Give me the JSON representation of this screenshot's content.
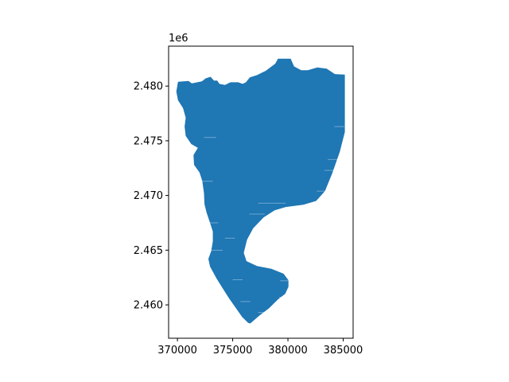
{
  "chart_data": {
    "type": "map",
    "title": "",
    "xlabel": "",
    "ylabel": "",
    "y_offset_label": "1e6",
    "xlim": [
      369200,
      385900
    ],
    "ylim": [
      2456950,
      2483650
    ],
    "x_ticks": [
      {
        "value": 370000,
        "label": "370000"
      },
      {
        "value": 375000,
        "label": "375000"
      },
      {
        "value": 380000,
        "label": "380000"
      },
      {
        "value": 385000,
        "label": "385000"
      }
    ],
    "y_ticks": [
      {
        "value": 2460000,
        "label": "2.460"
      },
      {
        "value": 2465000,
        "label": "2.465"
      },
      {
        "value": 2470000,
        "label": "2.470"
      },
      {
        "value": 2475000,
        "label": "2.475"
      },
      {
        "value": 2480000,
        "label": "2.480"
      }
    ],
    "fill_color": "#1f77b4",
    "grid": false,
    "region_outline": [
      [
        370050,
        2480400
      ],
      [
        371000,
        2480460
      ],
      [
        371300,
        2480250
      ],
      [
        372200,
        2480430
      ],
      [
        372550,
        2480700
      ],
      [
        373000,
        2480850
      ],
      [
        373300,
        2480500
      ],
      [
        373600,
        2480500
      ],
      [
        373800,
        2480200
      ],
      [
        374300,
        2480100
      ],
      [
        374800,
        2480350
      ],
      [
        375500,
        2480350
      ],
      [
        375900,
        2480200
      ],
      [
        376200,
        2480350
      ],
      [
        376550,
        2480800
      ],
      [
        377200,
        2481000
      ],
      [
        378000,
        2481400
      ],
      [
        378850,
        2482050
      ],
      [
        379100,
        2482500
      ],
      [
        380250,
        2482500
      ],
      [
        380550,
        2481800
      ],
      [
        381200,
        2481450
      ],
      [
        381800,
        2481450
      ],
      [
        382650,
        2481700
      ],
      [
        383500,
        2481600
      ],
      [
        384250,
        2481100
      ],
      [
        385150,
        2481050
      ],
      [
        385150,
        2475800
      ],
      [
        384700,
        2474000
      ],
      [
        384000,
        2472000
      ],
      [
        383350,
        2470400
      ],
      [
        382550,
        2469500
      ],
      [
        381400,
        2469150
      ],
      [
        379800,
        2468950
      ],
      [
        378800,
        2468650
      ],
      [
        377800,
        2468000
      ],
      [
        376850,
        2467000
      ],
      [
        376300,
        2465950
      ],
      [
        376000,
        2464750
      ],
      [
        376250,
        2464000
      ],
      [
        377200,
        2463550
      ],
      [
        378500,
        2463300
      ],
      [
        379600,
        2462850
      ],
      [
        380050,
        2462250
      ],
      [
        380050,
        2461650
      ],
      [
        379750,
        2461000
      ],
      [
        379100,
        2460500
      ],
      [
        378300,
        2459700
      ],
      [
        377400,
        2459000
      ],
      [
        376600,
        2458300
      ],
      [
        376400,
        2458350
      ],
      [
        375850,
        2458900
      ],
      [
        375300,
        2459700
      ],
      [
        374700,
        2460550
      ],
      [
        374100,
        2461500
      ],
      [
        373550,
        2462400
      ],
      [
        372950,
        2463500
      ],
      [
        372800,
        2464200
      ],
      [
        373050,
        2464900
      ],
      [
        373200,
        2465800
      ],
      [
        373200,
        2466700
      ],
      [
        372950,
        2467500
      ],
      [
        372650,
        2468400
      ],
      [
        372450,
        2469200
      ],
      [
        372400,
        2470200
      ],
      [
        372250,
        2471300
      ],
      [
        372000,
        2472100
      ],
      [
        371500,
        2472800
      ],
      [
        371450,
        2473700
      ],
      [
        371850,
        2474350
      ],
      [
        371250,
        2474700
      ],
      [
        370750,
        2475450
      ],
      [
        370650,
        2476300
      ],
      [
        370750,
        2477100
      ],
      [
        370500,
        2478000
      ],
      [
        370050,
        2478700
      ],
      [
        369900,
        2479500
      ]
    ]
  }
}
